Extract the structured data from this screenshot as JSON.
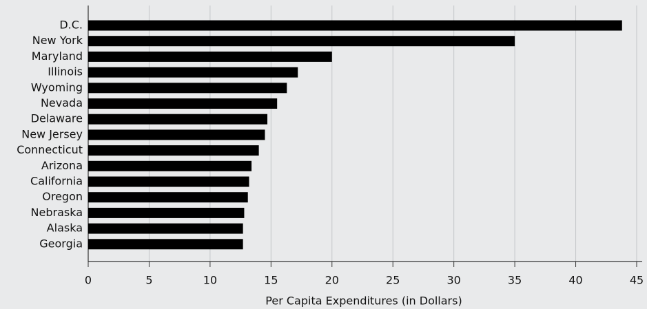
{
  "chart_data": {
    "type": "bar",
    "orientation": "horizontal",
    "x_label": "Per Capita Expenditures (in Dollars)",
    "categories": [
      "D.C.",
      "New York",
      "Maryland",
      "Illinois",
      "Wyoming",
      "Nevada",
      "Delaware",
      "New Jersey",
      "Connecticut",
      "Arizona",
      "California",
      "Oregon",
      "Nebraska",
      "Alaska",
      "Georgia"
    ],
    "values": [
      43.8,
      35.0,
      20.0,
      17.2,
      16.3,
      15.5,
      14.7,
      14.5,
      14.0,
      13.4,
      13.2,
      13.1,
      12.8,
      12.7,
      12.7
    ],
    "color": "#000000",
    "xlim": [
      0,
      45
    ],
    "xticks": [
      0,
      5,
      10,
      15,
      20,
      25,
      30,
      35,
      40,
      45
    ],
    "grid": true
  }
}
